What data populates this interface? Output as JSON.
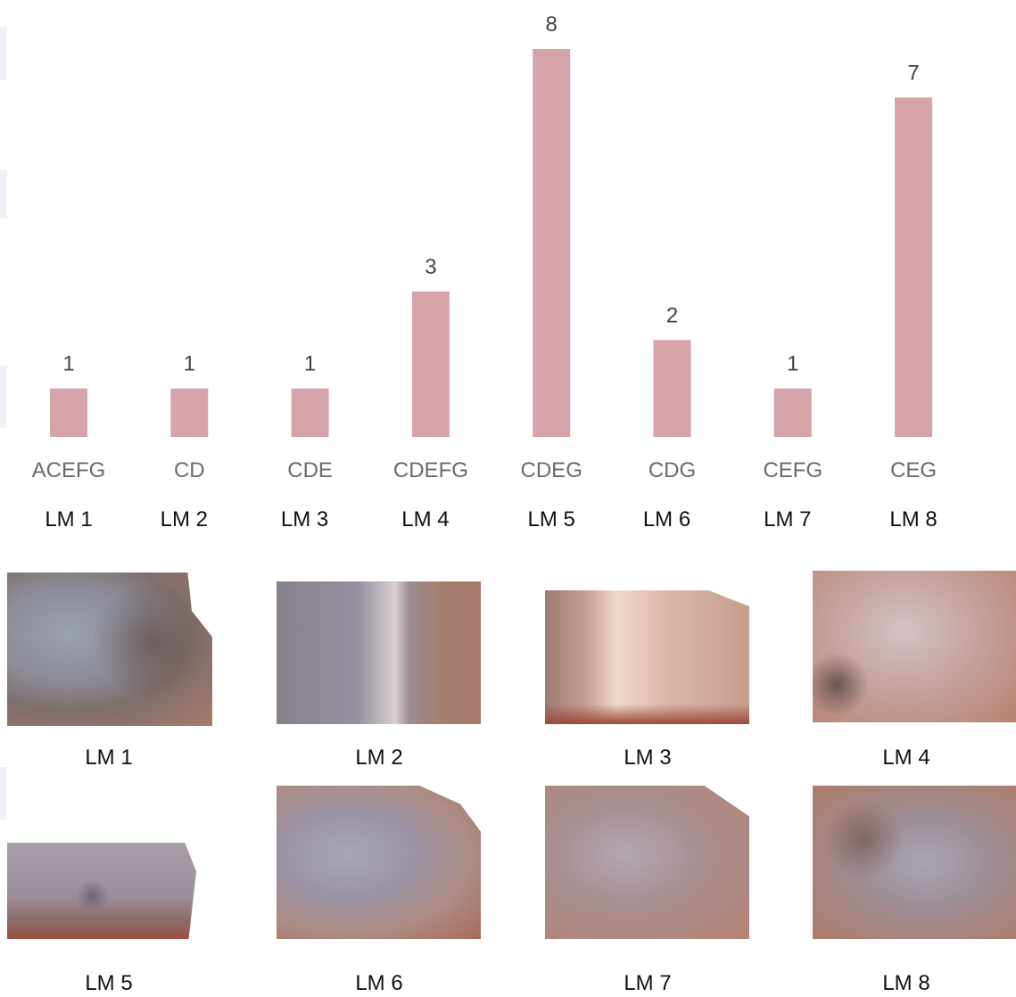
{
  "chart_data": {
    "type": "bar",
    "categories": [
      "ACEFG",
      "CD",
      "CDE",
      "CDEFG",
      "CDEG",
      "CDG",
      "CEFG",
      "CEG"
    ],
    "groups": [
      "LM 1",
      "LM 2",
      "LM 3",
      "LM 4",
      "LM 5",
      "LM 6",
      "LM 7",
      "LM 8"
    ],
    "values": [
      1,
      1,
      1,
      3,
      8,
      2,
      1,
      7
    ],
    "ylim": [
      0,
      8
    ],
    "grid": false,
    "bar_color": "#d6a3aa"
  },
  "photos": {
    "row1": [
      "LM 1",
      "LM 2",
      "LM 3",
      "LM 4"
    ],
    "row2": [
      "LM 5",
      "LM 6",
      "LM 7",
      "LM 8"
    ]
  }
}
